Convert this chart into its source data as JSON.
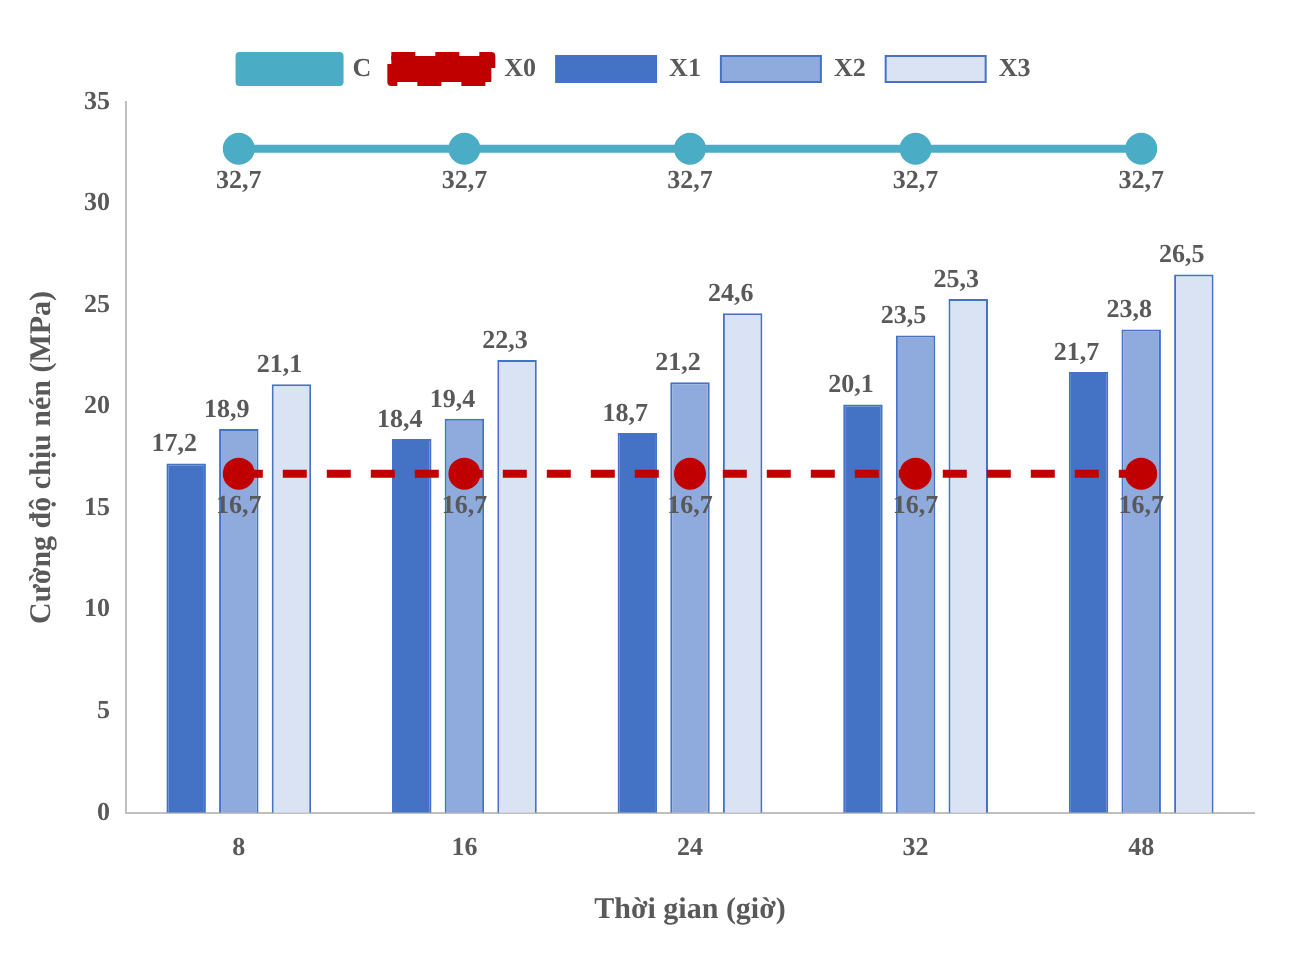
{
  "chart_data": {
    "type": "bar",
    "xlabel": "Thời gian (giờ)",
    "ylabel": "Cường độ chịu nén (MPa)",
    "categories": [
      "8",
      "16",
      "24",
      "32",
      "48"
    ],
    "series": [
      {
        "name": "X1",
        "color": "#4472c4",
        "values": [
          17.2,
          18.4,
          18.7,
          20.1,
          21.7
        ],
        "value_labels": [
          "17,2",
          "18,4",
          "18,7",
          "20,1",
          "21,7"
        ]
      },
      {
        "name": "X2",
        "color": "#8faadc",
        "values": [
          18.9,
          19.4,
          21.2,
          23.5,
          23.8
        ],
        "value_labels": [
          "18,9",
          "19,4",
          "21,2",
          "23,5",
          "23,8"
        ]
      },
      {
        "name": "X3",
        "color": "#dae3f3",
        "values": [
          21.1,
          22.3,
          24.6,
          25.3,
          26.5
        ],
        "value_labels": [
          "21,1",
          "22,3",
          "24,6",
          "25,3",
          "26,5"
        ]
      },
      {
        "name": "C",
        "type": "line",
        "color": "#4bacc6",
        "marker": "circle",
        "line_style": "solid",
        "values": [
          32.7,
          32.7,
          32.7,
          32.7,
          32.7
        ],
        "value_labels": [
          "32,7",
          "32,7",
          "32,7",
          "32,7",
          "32,7"
        ]
      },
      {
        "name": "X0",
        "type": "line",
        "color": "#c00000",
        "marker": "circle",
        "line_style": "dashed",
        "values": [
          16.7,
          16.7,
          16.7,
          16.7,
          16.7
        ],
        "value_labels": [
          "16,7",
          "16,7",
          "16,7",
          "16,7",
          "16,7"
        ]
      }
    ],
    "ylim": [
      0,
      35
    ],
    "yticks": [
      0,
      5,
      10,
      15,
      20,
      25,
      30,
      35
    ],
    "grid": false,
    "legend": "top"
  }
}
